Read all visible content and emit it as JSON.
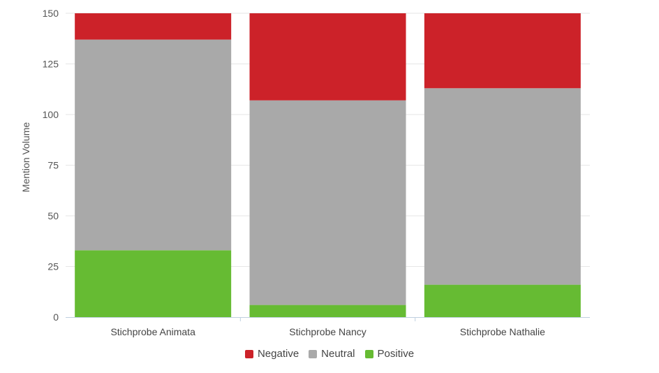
{
  "chart_data": {
    "type": "bar",
    "stacked": true,
    "categories": [
      "Stichprobe Animata",
      "Stichprobe Nancy",
      "Stichprobe Nathalie"
    ],
    "series": [
      {
        "name": "Negative",
        "color": "#cc2229",
        "values": [
          13,
          43,
          37
        ]
      },
      {
        "name": "Neutral",
        "color": "#a9a9a9",
        "values": [
          104,
          101,
          97
        ]
      },
      {
        "name": "Positive",
        "color": "#66bb33",
        "values": [
          33,
          6,
          16
        ]
      }
    ],
    "stack_order_bottom_to_top": [
      "Positive",
      "Neutral",
      "Negative"
    ],
    "ylabel": "Mention Volume",
    "ylim": [
      0,
      150
    ],
    "yticks": [
      0,
      25,
      50,
      75,
      100,
      125,
      150
    ],
    "grid": true,
    "legend_position": "bottom-center"
  }
}
